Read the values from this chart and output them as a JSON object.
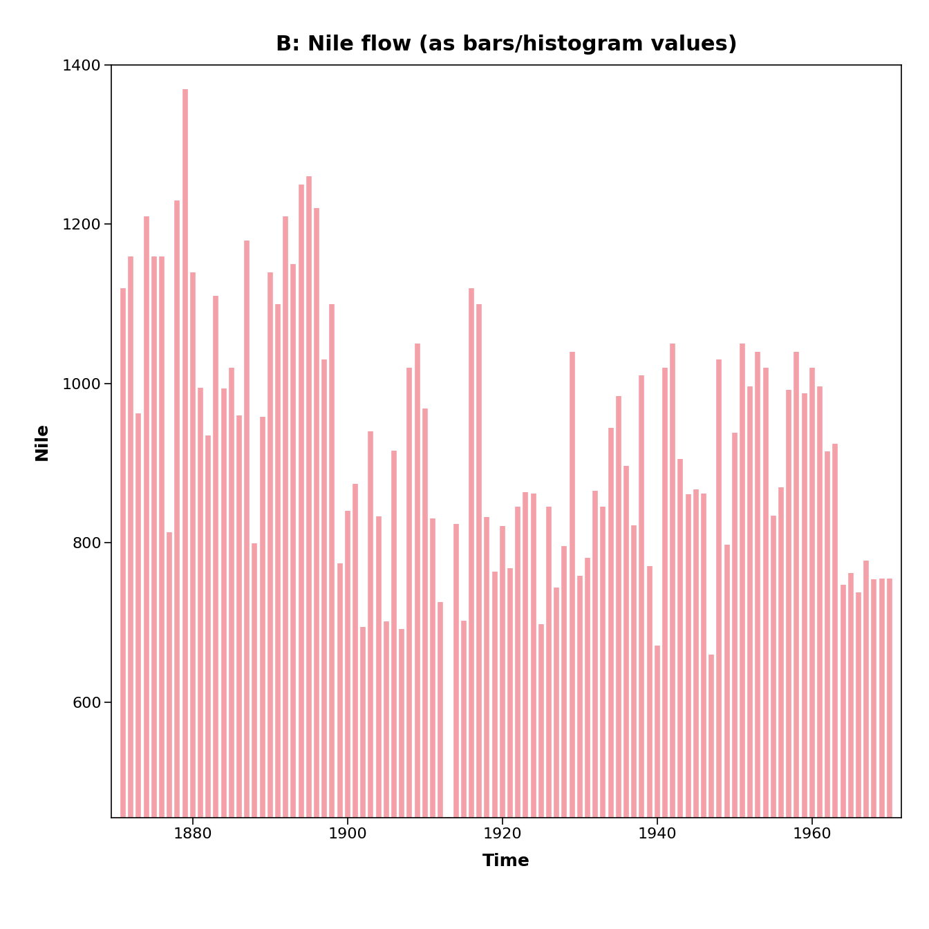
{
  "title": "B: Nile flow (as bars/histogram values)",
  "xlabel": "Time",
  "ylabel": "Nile",
  "bar_color": "#f4a0a8",
  "years": [
    1871,
    1872,
    1873,
    1874,
    1875,
    1876,
    1877,
    1878,
    1879,
    1880,
    1881,
    1882,
    1883,
    1884,
    1885,
    1886,
    1887,
    1888,
    1889,
    1890,
    1891,
    1892,
    1893,
    1894,
    1895,
    1896,
    1897,
    1898,
    1899,
    1900,
    1901,
    1902,
    1903,
    1904,
    1905,
    1906,
    1907,
    1908,
    1909,
    1910,
    1911,
    1912,
    1913,
    1914,
    1915,
    1916,
    1917,
    1918,
    1919,
    1920,
    1921,
    1922,
    1923,
    1924,
    1925,
    1926,
    1927,
    1928,
    1929,
    1930,
    1931,
    1932,
    1933,
    1934,
    1935,
    1936,
    1937,
    1938,
    1939,
    1940,
    1941,
    1942,
    1943,
    1944,
    1945,
    1946,
    1947,
    1948,
    1949,
    1950,
    1951,
    1952,
    1953,
    1954,
    1955,
    1956,
    1957,
    1958,
    1959,
    1960,
    1961,
    1962,
    1963,
    1964,
    1965,
    1966,
    1967,
    1968,
    1969,
    1970
  ],
  "values": [
    1120,
    1160,
    963,
    1210,
    1160,
    1160,
    813,
    1230,
    1370,
    1140,
    995,
    935,
    1110,
    994,
    1020,
    960,
    1180,
    799,
    958,
    1140,
    1100,
    1210,
    1150,
    1250,
    1260,
    1220,
    1030,
    1100,
    774,
    840,
    874,
    694,
    940,
    833,
    701,
    916,
    692,
    1020,
    1050,
    969,
    831,
    726,
    456,
    824,
    702,
    1120,
    1100,
    832,
    764,
    821,
    768,
    845,
    864,
    862,
    698,
    845,
    744,
    796,
    1040,
    759,
    781,
    865,
    845,
    944,
    984,
    897,
    822,
    1010,
    771,
    671,
    1020,
    1050,
    905,
    861,
    867,
    862,
    660,
    1030,
    798,
    938,
    1050,
    996,
    1040,
    1020,
    834,
    870,
    992,
    1040,
    988,
    1020,
    996,
    915,
    924,
    747,
    762,
    738,
    778,
    754,
    755,
    755
  ],
  "ylim_min": 455,
  "ylim_max": 1400,
  "yticks": [
    600,
    800,
    1000,
    1200,
    1400
  ],
  "xticks": [
    1880,
    1900,
    1920,
    1940,
    1960
  ],
  "xlim_min": 1869.5,
  "xlim_max": 1971.5,
  "background_color": "#ffffff",
  "title_fontsize": 22,
  "label_fontsize": 18,
  "tick_fontsize": 16,
  "line_width": 5.5
}
